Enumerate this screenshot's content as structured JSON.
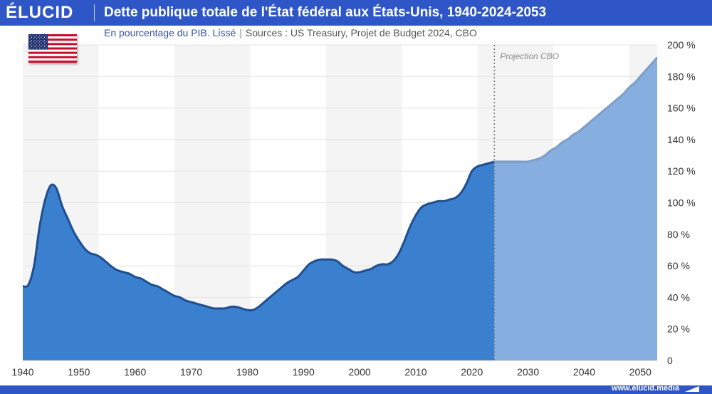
{
  "brand": {
    "name": "ÉLUCID",
    "url": "www.elucid.media"
  },
  "colors": {
    "brand": "#2f56c6",
    "historic_fill": "#3b7fcf",
    "historic_line": "#1f4f8f",
    "projection_fill": "#86aedf",
    "projection_line": "#7e9ec7"
  },
  "icons": {
    "flag": "us-flag-icon"
  },
  "chart_data": {
    "type": "area",
    "title": "Dette publique totale de l'État fédéral aux États-Unis, 1940-2024-2053",
    "subtitle": "En pourcentage du PIB. Lissé",
    "source": "Sources : US Treasury, Projet de Budget 2024, CBO",
    "annotation": "Projection CBO",
    "projection_start": 2024,
    "xlim": [
      1940,
      2053
    ],
    "ylim": [
      0,
      200
    ],
    "x_ticks": [
      1940,
      1950,
      1960,
      1970,
      1980,
      1990,
      2000,
      2010,
      2020,
      2030,
      2040,
      2050
    ],
    "y_ticks": [
      "0",
      "20 %",
      "40 %",
      "60 %",
      "80 %",
      "100 %",
      "120 %",
      "140 %",
      "160 %",
      "180 %",
      "200 %"
    ],
    "grid": true,
    "series": [
      {
        "values": [
          [
            1940,
            47
          ],
          [
            1941,
            48
          ],
          [
            1942,
            60
          ],
          [
            1943,
            85
          ],
          [
            1944,
            102
          ],
          [
            1945,
            111
          ],
          [
            1946,
            109
          ],
          [
            1947,
            98
          ],
          [
            1948,
            90
          ],
          [
            1949,
            82
          ],
          [
            1950,
            76
          ],
          [
            1951,
            71
          ],
          [
            1952,
            68
          ],
          [
            1953,
            67
          ],
          [
            1954,
            65
          ],
          [
            1955,
            62
          ],
          [
            1956,
            59
          ],
          [
            1957,
            57
          ],
          [
            1958,
            56
          ],
          [
            1959,
            55
          ],
          [
            1960,
            53
          ],
          [
            1961,
            52
          ],
          [
            1962,
            50
          ],
          [
            1963,
            48
          ],
          [
            1964,
            47
          ],
          [
            1965,
            45
          ],
          [
            1966,
            43
          ],
          [
            1967,
            41
          ],
          [
            1968,
            40
          ],
          [
            1969,
            38
          ],
          [
            1970,
            37
          ],
          [
            1971,
            36
          ],
          [
            1972,
            35
          ],
          [
            1973,
            34
          ],
          [
            1974,
            33
          ],
          [
            1975,
            33
          ],
          [
            1976,
            33
          ],
          [
            1977,
            34
          ],
          [
            1978,
            34
          ],
          [
            1979,
            33
          ],
          [
            1980,
            32
          ],
          [
            1981,
            32
          ],
          [
            1982,
            34
          ],
          [
            1983,
            37
          ],
          [
            1984,
            40
          ],
          [
            1985,
            43
          ],
          [
            1986,
            46
          ],
          [
            1987,
            49
          ],
          [
            1988,
            51
          ],
          [
            1989,
            53
          ],
          [
            1990,
            57
          ],
          [
            1991,
            61
          ],
          [
            1992,
            63
          ],
          [
            1993,
            64
          ],
          [
            1994,
            64
          ],
          [
            1995,
            64
          ],
          [
            1996,
            63
          ],
          [
            1997,
            60
          ],
          [
            1998,
            58
          ],
          [
            1999,
            56
          ],
          [
            2000,
            56
          ],
          [
            2001,
            57
          ],
          [
            2002,
            58
          ],
          [
            2003,
            60
          ],
          [
            2004,
            61
          ],
          [
            2005,
            61
          ],
          [
            2006,
            63
          ],
          [
            2007,
            68
          ],
          [
            2008,
            76
          ],
          [
            2009,
            85
          ],
          [
            2010,
            92
          ],
          [
            2011,
            97
          ],
          [
            2012,
            99
          ],
          [
            2013,
            100
          ],
          [
            2014,
            101
          ],
          [
            2015,
            101
          ],
          [
            2016,
            102
          ],
          [
            2017,
            103
          ],
          [
            2018,
            106
          ],
          [
            2019,
            112
          ],
          [
            2020,
            120
          ],
          [
            2021,
            123
          ],
          [
            2022,
            124
          ],
          [
            2023,
            125
          ],
          [
            2024,
            126
          ]
        ]
      },
      {
        "values": [
          [
            2024,
            126
          ],
          [
            2025,
            126
          ],
          [
            2026,
            126
          ],
          [
            2027,
            126
          ],
          [
            2028,
            126
          ],
          [
            2029,
            126
          ],
          [
            2030,
            126
          ],
          [
            2031,
            127
          ],
          [
            2032,
            128
          ],
          [
            2033,
            130
          ],
          [
            2034,
            133
          ],
          [
            2035,
            135
          ],
          [
            2036,
            138
          ],
          [
            2037,
            140
          ],
          [
            2038,
            143
          ],
          [
            2039,
            145
          ],
          [
            2040,
            148
          ],
          [
            2041,
            151
          ],
          [
            2042,
            154
          ],
          [
            2043,
            157
          ],
          [
            2044,
            160
          ],
          [
            2045,
            163
          ],
          [
            2046,
            166
          ],
          [
            2047,
            169
          ],
          [
            2048,
            173
          ],
          [
            2049,
            176
          ],
          [
            2050,
            180
          ],
          [
            2051,
            184
          ],
          [
            2052,
            188
          ],
          [
            2053,
            192
          ]
        ]
      }
    ]
  }
}
